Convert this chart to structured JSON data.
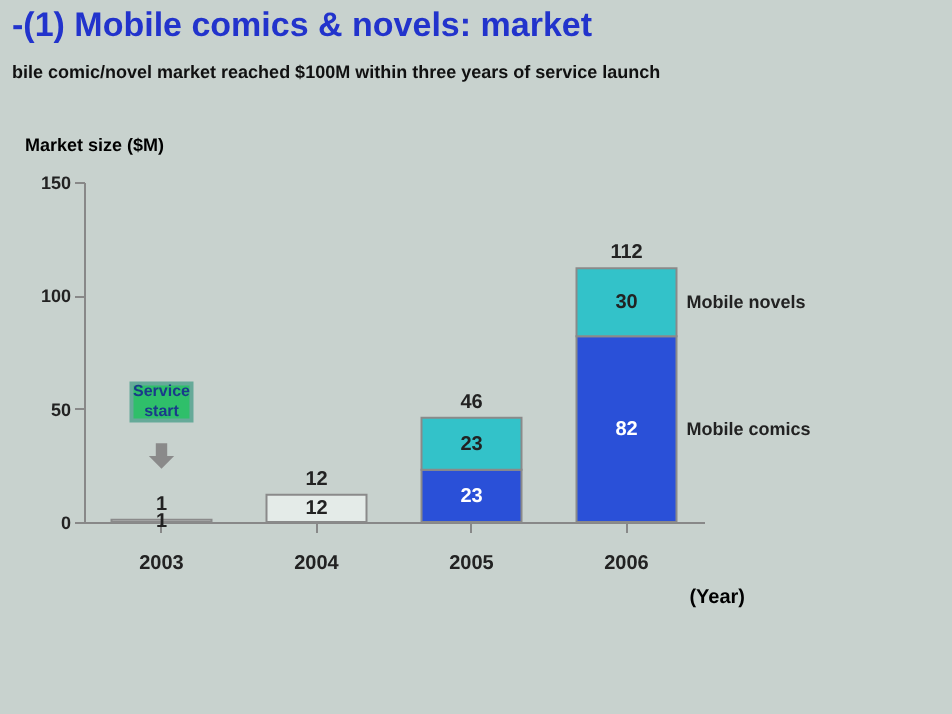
{
  "chart_data": {
    "type": "bar",
    "title": "-(1) Mobile comics & novels: market",
    "subtitle": "bile comic/novel market reached $100M within three years of service launch",
    "xlabel": "(Year)",
    "ylabel": "Market size ($M)",
    "categories": [
      "2003",
      "2004",
      "2005",
      "2006"
    ],
    "stacked": true,
    "series": [
      {
        "name": "Mobile comics",
        "colors": [
          "#e4ebe8",
          "#e4ebe8",
          "#2a50d8",
          "#2a50d8"
        ],
        "values": [
          1,
          12,
          23,
          82
        ]
      },
      {
        "name": "Mobile novels",
        "color": "#33c2c9",
        "values": [
          null,
          null,
          23,
          30
        ]
      }
    ],
    "totals": [
      "1",
      "12",
      "46",
      "112"
    ],
    "data_labels": true,
    "ylim": [
      0,
      150
    ],
    "yticks": [
      0,
      50,
      100,
      150
    ],
    "grid": false,
    "legend": "right",
    "annotations": [
      "Service start"
    ]
  }
}
